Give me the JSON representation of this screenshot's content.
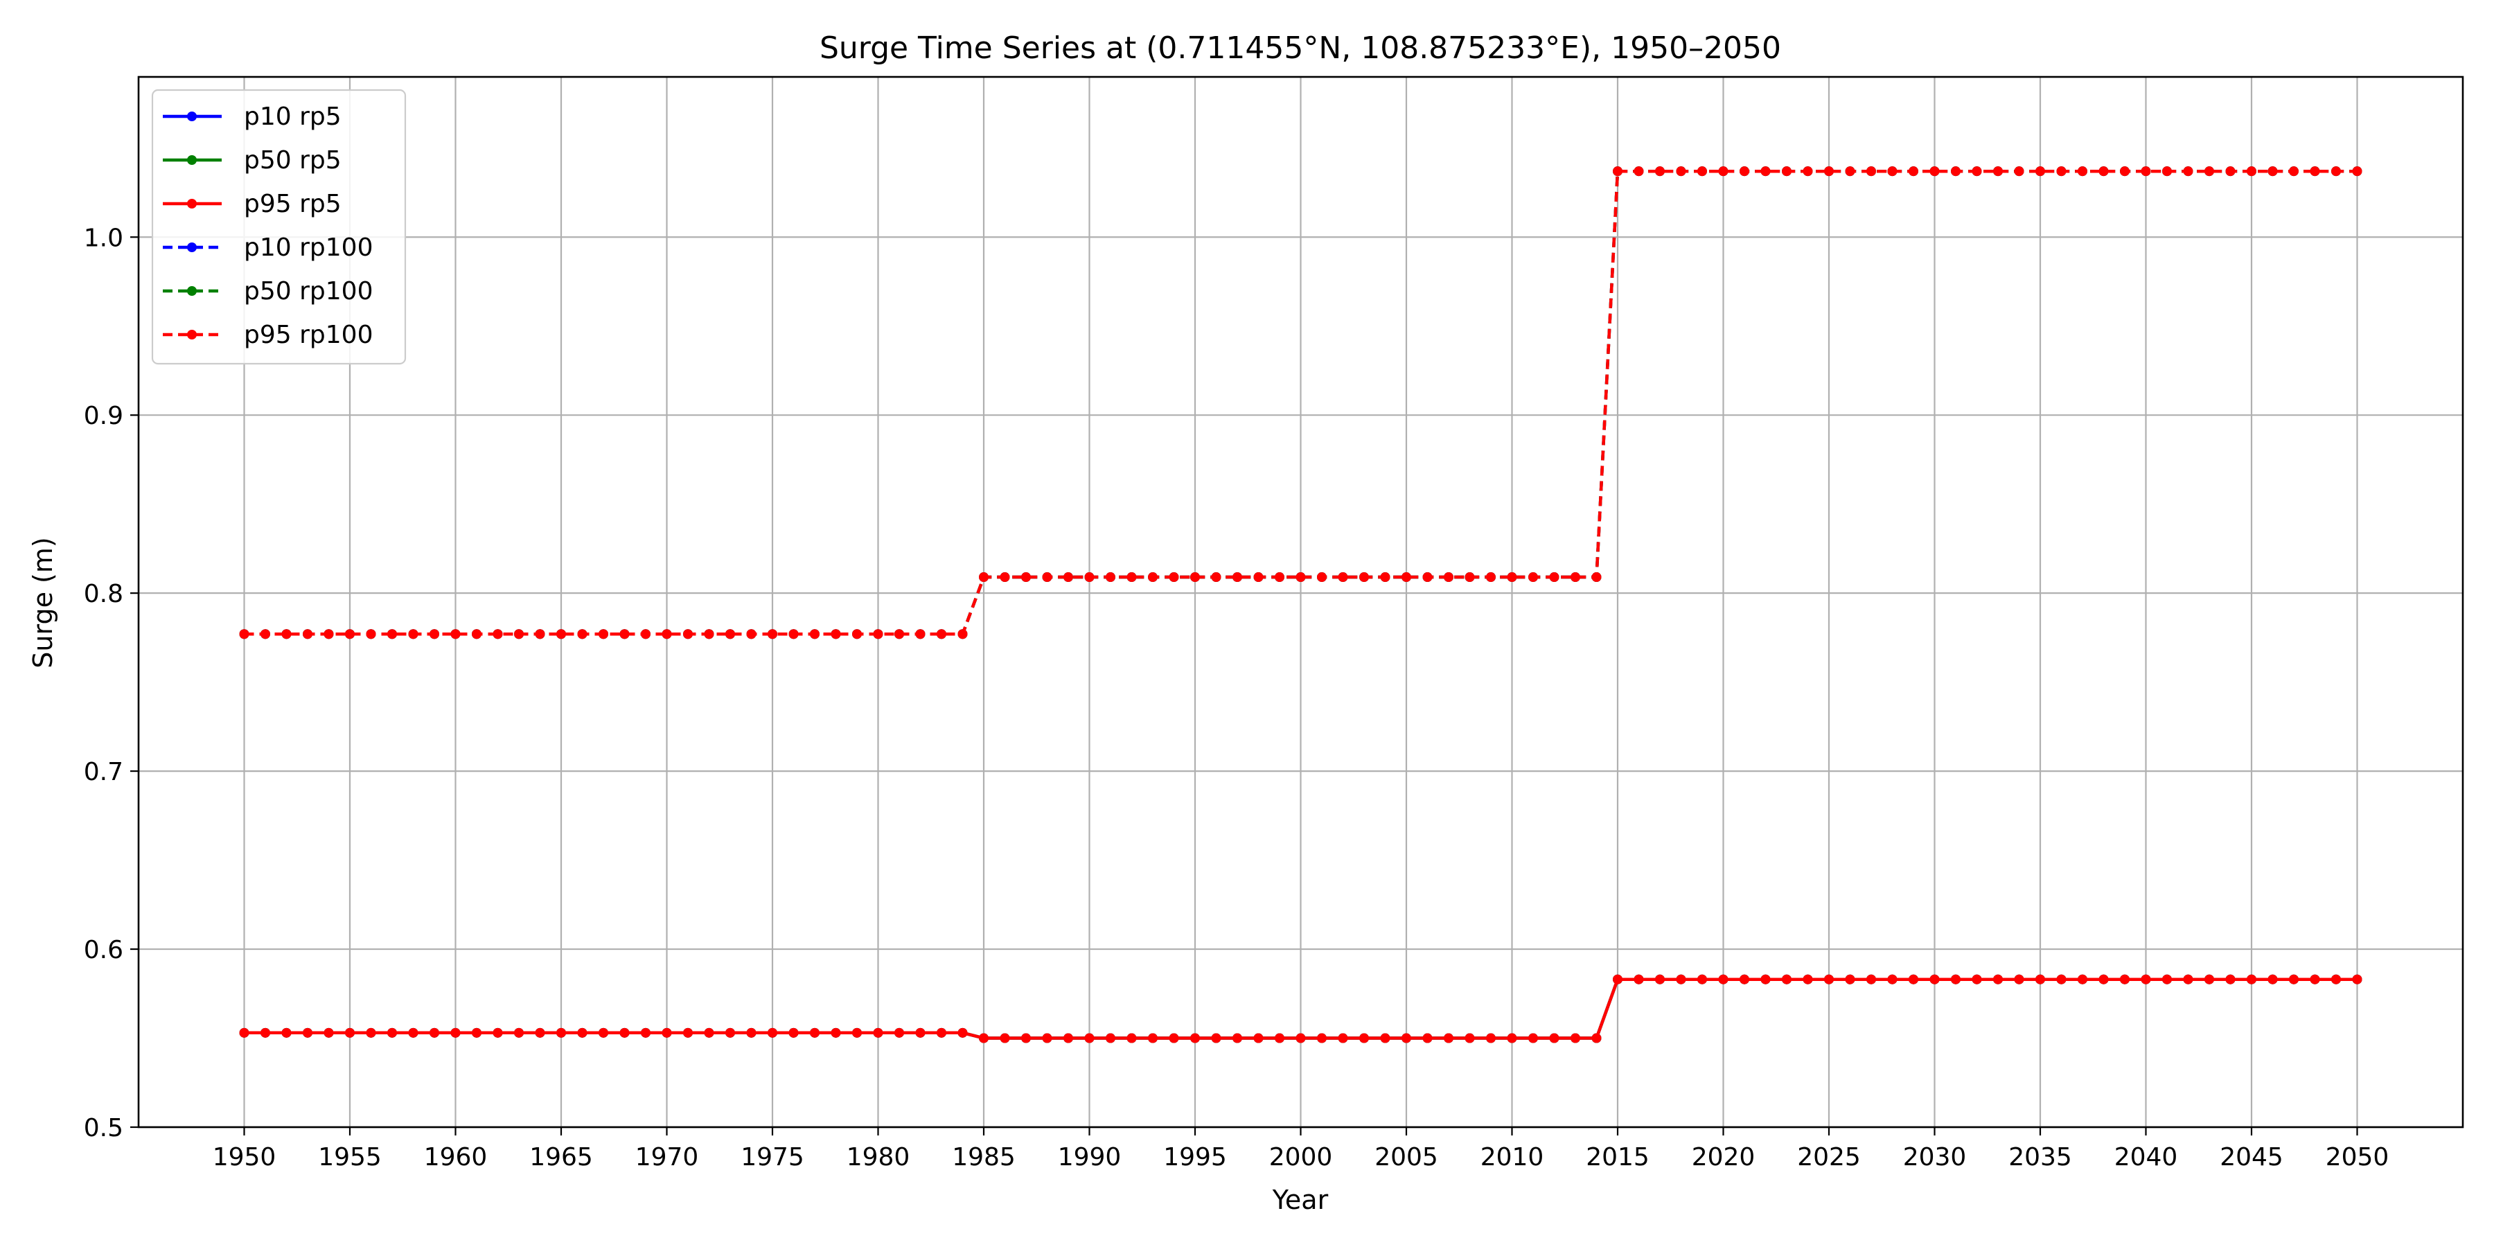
{
  "chart_data": {
    "type": "line",
    "title": "Surge Time Series at (0.711455°N, 108.875233°E), 1950–2050",
    "xlabel": "Year",
    "ylabel": "Surge (m)",
    "xlim": [
      1945,
      2055
    ],
    "ylim": [
      0.5,
      1.09
    ],
    "x_ticks": [
      1950,
      1955,
      1960,
      1965,
      1970,
      1975,
      1980,
      1985,
      1990,
      1995,
      2000,
      2005,
      2010,
      2015,
      2020,
      2025,
      2030,
      2035,
      2040,
      2045,
      2050
    ],
    "y_ticks": [
      0.5,
      0.6,
      0.7,
      0.8,
      0.9,
      1.0
    ],
    "y_tick_labels": [
      "0.5",
      "0.6",
      "0.7",
      "0.8",
      "0.9",
      "1.0"
    ],
    "grid": true,
    "legend_position": "top-left",
    "x_start": 1950,
    "x_end": 2050,
    "series": [
      {
        "name": "p10 rp5",
        "color": "#0000ff",
        "style": "solid",
        "segments": [
          {
            "from": 1950,
            "to": 1984,
            "value": 0.553
          },
          {
            "from": 1985,
            "to": 2014,
            "value": 0.55
          },
          {
            "from": 2015,
            "to": 2050,
            "value": 0.583
          }
        ]
      },
      {
        "name": "p50 rp5",
        "color": "#008000",
        "style": "solid",
        "segments": [
          {
            "from": 1950,
            "to": 1984,
            "value": 0.553
          },
          {
            "from": 1985,
            "to": 2014,
            "value": 0.55
          },
          {
            "from": 2015,
            "to": 2050,
            "value": 0.583
          }
        ]
      },
      {
        "name": "p95 rp5",
        "color": "#ff0000",
        "style": "solid",
        "segments": [
          {
            "from": 1950,
            "to": 1984,
            "value": 0.553
          },
          {
            "from": 1985,
            "to": 2014,
            "value": 0.55
          },
          {
            "from": 2015,
            "to": 2050,
            "value": 0.583
          }
        ]
      },
      {
        "name": "p10 rp100",
        "color": "#0000ff",
        "style": "dashed",
        "segments": [
          {
            "from": 1950,
            "to": 1984,
            "value": 0.777
          },
          {
            "from": 1985,
            "to": 2014,
            "value": 0.809
          },
          {
            "from": 2015,
            "to": 2050,
            "value": 1.037
          }
        ]
      },
      {
        "name": "p50 rp100",
        "color": "#008000",
        "style": "dashed",
        "segments": [
          {
            "from": 1950,
            "to": 1984,
            "value": 0.777
          },
          {
            "from": 1985,
            "to": 2014,
            "value": 0.809
          },
          {
            "from": 2015,
            "to": 2050,
            "value": 1.037
          }
        ]
      },
      {
        "name": "p95 rp100",
        "color": "#ff0000",
        "style": "dashed",
        "segments": [
          {
            "from": 1950,
            "to": 1984,
            "value": 0.777
          },
          {
            "from": 1985,
            "to": 2014,
            "value": 0.809
          },
          {
            "from": 2015,
            "to": 2050,
            "value": 1.037
          }
        ]
      }
    ]
  }
}
